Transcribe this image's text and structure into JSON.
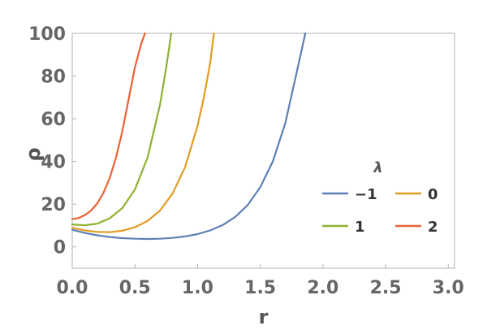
{
  "chart_data": {
    "type": "line",
    "xlabel": "r",
    "ylabel": "ρ",
    "xlim": [
      0,
      3.05
    ],
    "ylim": [
      -10,
      100
    ],
    "xticks": [
      "0.0",
      "0.5",
      "1.0",
      "1.5",
      "2.0",
      "2.5",
      "3.0"
    ],
    "yticks": [
      "0",
      "20",
      "40",
      "60",
      "80",
      "100"
    ],
    "grid": false,
    "legend": {
      "title": "λ",
      "placement": "right"
    },
    "series": [
      {
        "name": "−1",
        "color": "#5e81b5",
        "x": [
          0,
          0.1,
          0.2,
          0.3,
          0.4,
          0.5,
          0.6,
          0.7,
          0.8,
          0.9,
          1.0,
          1.1,
          1.2,
          1.3,
          1.4,
          1.5,
          1.6,
          1.7,
          1.8,
          1.86
        ],
        "y": [
          8.0,
          6.5,
          5.4,
          4.6,
          4.1,
          3.8,
          3.7,
          3.8,
          4.2,
          4.9,
          6.0,
          7.7,
          10.2,
          14.0,
          19.6,
          27.9,
          40.0,
          57.9,
          84.2,
          100
        ]
      },
      {
        "name": "0",
        "color": "#e19c24",
        "x": [
          0,
          0.1,
          0.2,
          0.3,
          0.4,
          0.5,
          0.6,
          0.7,
          0.8,
          0.9,
          1.0,
          1.05,
          1.1,
          1.13
        ],
        "y": [
          9.0,
          7.7,
          7.0,
          6.9,
          7.6,
          9.2,
          12.1,
          17.0,
          24.9,
          37.3,
          56.7,
          69.8,
          86.0,
          100
        ]
      },
      {
        "name": "1",
        "color": "#8fb032",
        "x": [
          0,
          0.1,
          0.2,
          0.3,
          0.4,
          0.5,
          0.6,
          0.7,
          0.75,
          0.79
        ],
        "y": [
          10.5,
          10.1,
          10.9,
          13.4,
          18.2,
          26.9,
          41.7,
          66.5,
          84.1,
          100
        ]
      },
      {
        "name": "2",
        "color": "#eb6235",
        "x": [
          0,
          0.05,
          0.1,
          0.15,
          0.2,
          0.25,
          0.3,
          0.35,
          0.4,
          0.45,
          0.5,
          0.55,
          0.58
        ],
        "y": [
          13.0,
          13.5,
          14.8,
          17.0,
          20.4,
          25.4,
          32.4,
          41.9,
          54.3,
          69.2,
          84.0,
          95.0,
          100
        ]
      }
    ]
  }
}
